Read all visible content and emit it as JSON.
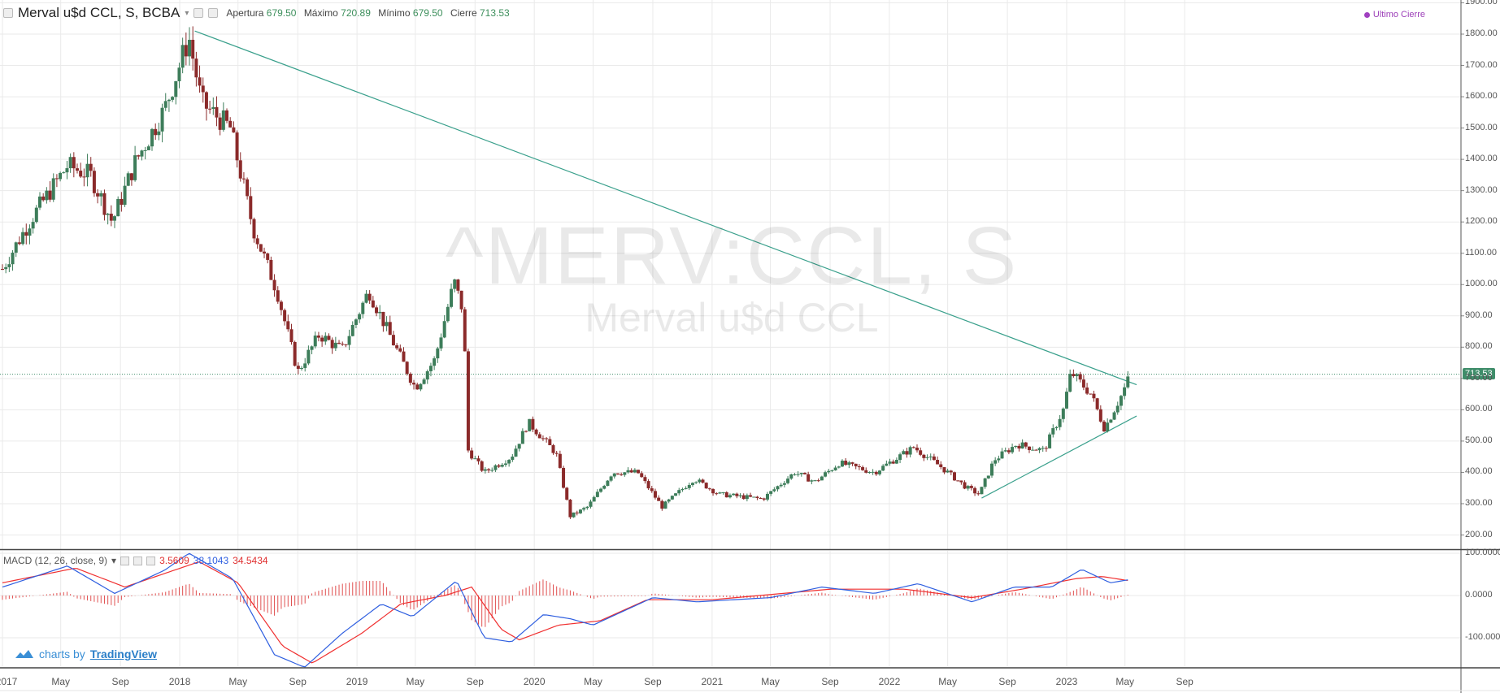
{
  "header": {
    "symbol_text": "Merval u$d CCL, S, BCBA",
    "ohlc": [
      {
        "label": "Apertura",
        "value": "679.50"
      },
      {
        "label": "Máximo",
        "value": "720.89"
      },
      {
        "label": "Mínimo",
        "value": "679.50"
      },
      {
        "label": "Cierre",
        "value": "713.53"
      }
    ],
    "legend_right": "Ultimo Cierre"
  },
  "watermark": {
    "line1": "^MERV:CCL, S",
    "line2": "Merval u$d CCL"
  },
  "last_price_tag": "713.53",
  "macd": {
    "title": "MACD (12, 26, close, 9)",
    "v_hist": "3.5609",
    "v_macd": "38.1043",
    "v_signal": "34.5434"
  },
  "branding": {
    "prefix": "charts by",
    "name": "TradingView"
  },
  "colors": {
    "up": "#3d7d5a",
    "down": "#8b2a2a",
    "trendline": "#3aa08c",
    "macd_line": "#2f5fe0",
    "signal_line": "#f03030",
    "hist": "#e05050",
    "accent": "#a03fc0"
  },
  "chart_data": [
    {
      "type": "candlestick",
      "title": "Merval u$d CCL, S, BCBA",
      "x_ticks": [
        "2017",
        "May",
        "Sep",
        "2018",
        "May",
        "Sep",
        "2019",
        "May",
        "Sep",
        "2020",
        "May",
        "Sep",
        "2021",
        "May",
        "Sep",
        "2022",
        "May",
        "Sep",
        "2023",
        "May",
        "Sep"
      ],
      "y_ticks": [
        "1900.00",
        "1800.00",
        "1700.00",
        "1600.00",
        "1500.00",
        "1400.00",
        "1300.00",
        "1200.00",
        "1100.00",
        "1000.00",
        "900.00",
        "800.00",
        "700.00",
        "600.00",
        "500.00",
        "400.00",
        "300.00",
        "200.00"
      ],
      "ylim": [
        160,
        1900
      ],
      "anchors": [
        {
          "date": "2017-01-01",
          "close": 1050
        },
        {
          "date": "2017-03-01",
          "close": 1210
        },
        {
          "date": "2017-05-15",
          "close": 1380
        },
        {
          "date": "2017-07-01",
          "close": 1350
        },
        {
          "date": "2017-08-15",
          "close": 1200
        },
        {
          "date": "2017-10-01",
          "close": 1390
        },
        {
          "date": "2017-12-01",
          "close": 1560
        },
        {
          "date": "2018-01-20",
          "close": 1790
        },
        {
          "date": "2018-02-15",
          "close": 1580
        },
        {
          "date": "2018-04-15",
          "close": 1500
        },
        {
          "date": "2018-06-01",
          "close": 1180
        },
        {
          "date": "2018-07-20",
          "close": 980
        },
        {
          "date": "2018-09-01",
          "close": 720
        },
        {
          "date": "2018-10-15",
          "close": 840
        },
        {
          "date": "2018-12-01",
          "close": 790
        },
        {
          "date": "2019-01-25",
          "close": 980
        },
        {
          "date": "2019-03-15",
          "close": 820
        },
        {
          "date": "2019-05-01",
          "close": 670
        },
        {
          "date": "2019-06-10",
          "close": 760
        },
        {
          "date": "2019-07-20",
          "close": 1010
        },
        {
          "date": "2019-08-08",
          "close": 910
        },
        {
          "date": "2019-08-18",
          "close": 470
        },
        {
          "date": "2019-09-20",
          "close": 400
        },
        {
          "date": "2019-11-15",
          "close": 450
        },
        {
          "date": "2019-12-20",
          "close": 560
        },
        {
          "date": "2020-02-15",
          "close": 460
        },
        {
          "date": "2020-03-15",
          "close": 260
        },
        {
          "date": "2020-04-20",
          "close": 290
        },
        {
          "date": "2020-06-10",
          "close": 400
        },
        {
          "date": "2020-08-01",
          "close": 400
        },
        {
          "date": "2020-09-20",
          "close": 290
        },
        {
          "date": "2020-11-25",
          "close": 380
        },
        {
          "date": "2021-01-15",
          "close": 330
        },
        {
          "date": "2021-04-15",
          "close": 315
        },
        {
          "date": "2021-06-20",
          "close": 400
        },
        {
          "date": "2021-08-01",
          "close": 370
        },
        {
          "date": "2021-09-20",
          "close": 430
        },
        {
          "date": "2021-12-01",
          "close": 400
        },
        {
          "date": "2022-02-20",
          "close": 480
        },
        {
          "date": "2022-04-15",
          "close": 420
        },
        {
          "date": "2022-06-10",
          "close": 350
        },
        {
          "date": "2022-07-05",
          "close": 330
        },
        {
          "date": "2022-08-05",
          "close": 440
        },
        {
          "date": "2022-09-20",
          "close": 490
        },
        {
          "date": "2022-11-15",
          "close": 470
        },
        {
          "date": "2022-12-25",
          "close": 600
        },
        {
          "date": "2023-01-10",
          "close": 720
        },
        {
          "date": "2023-02-20",
          "close": 650
        },
        {
          "date": "2023-03-20",
          "close": 540
        },
        {
          "date": "2023-04-25",
          "close": 650
        },
        {
          "date": "2023-05-12",
          "close": 713.53
        }
      ],
      "trendlines": [
        {
          "from": {
            "date": "2018-02-01",
            "value": 1810
          },
          "to": {
            "date": "2023-05-25",
            "value": 680
          }
        },
        {
          "from": {
            "date": "2022-07-10",
            "value": 318
          },
          "to": {
            "date": "2023-05-25",
            "value": 580
          }
        }
      ],
      "last_close": 713.53
    },
    {
      "type": "line",
      "title": "MACD (12, 26, close, 9)",
      "y_ticks": [
        "100.0000",
        "0.0000",
        "-100.0000"
      ],
      "ylim": [
        -180,
        110
      ],
      "macd_anchors": [
        {
          "date": "2017-01-01",
          "value": 20
        },
        {
          "date": "2017-05-15",
          "value": 70
        },
        {
          "date": "2017-08-20",
          "value": 5
        },
        {
          "date": "2017-12-01",
          "value": 60
        },
        {
          "date": "2018-01-20",
          "value": 100
        },
        {
          "date": "2018-04-20",
          "value": 40
        },
        {
          "date": "2018-07-15",
          "value": -140
        },
        {
          "date": "2018-09-15",
          "value": -170
        },
        {
          "date": "2018-12-01",
          "value": -90
        },
        {
          "date": "2019-02-20",
          "value": -20
        },
        {
          "date": "2019-04-25",
          "value": -50
        },
        {
          "date": "2019-07-25",
          "value": 35
        },
        {
          "date": "2019-09-20",
          "value": -100
        },
        {
          "date": "2019-11-15",
          "value": -110
        },
        {
          "date": "2020-01-20",
          "value": -45
        },
        {
          "date": "2020-03-15",
          "value": -55
        },
        {
          "date": "2020-05-01",
          "value": -70
        },
        {
          "date": "2020-09-01",
          "value": -5
        },
        {
          "date": "2020-12-01",
          "value": -15
        },
        {
          "date": "2021-05-01",
          "value": -5
        },
        {
          "date": "2021-08-15",
          "value": 20
        },
        {
          "date": "2021-12-01",
          "value": 5
        },
        {
          "date": "2022-03-01",
          "value": 28
        },
        {
          "date": "2022-06-20",
          "value": -15
        },
        {
          "date": "2022-09-15",
          "value": 20
        },
        {
          "date": "2022-12-01",
          "value": 20
        },
        {
          "date": "2023-02-01",
          "value": 62
        },
        {
          "date": "2023-04-01",
          "value": 30
        },
        {
          "date": "2023-05-12",
          "value": 38.1043
        }
      ],
      "signal_anchors": [
        {
          "date": "2017-01-01",
          "value": 30
        },
        {
          "date": "2017-06-01",
          "value": 65
        },
        {
          "date": "2017-09-10",
          "value": 20
        },
        {
          "date": "2018-02-10",
          "value": 80
        },
        {
          "date": "2018-05-01",
          "value": 30
        },
        {
          "date": "2018-08-01",
          "value": -120
        },
        {
          "date": "2018-10-01",
          "value": -160
        },
        {
          "date": "2019-01-10",
          "value": -90
        },
        {
          "date": "2019-04-01",
          "value": -20
        },
        {
          "date": "2019-07-01",
          "value": 0
        },
        {
          "date": "2019-08-25",
          "value": 20
        },
        {
          "date": "2019-10-25",
          "value": -80
        },
        {
          "date": "2019-12-01",
          "value": -105
        },
        {
          "date": "2020-02-20",
          "value": -70
        },
        {
          "date": "2020-05-15",
          "value": -60
        },
        {
          "date": "2020-08-20",
          "value": -10
        },
        {
          "date": "2021-01-01",
          "value": -10
        },
        {
          "date": "2021-09-01",
          "value": 15
        },
        {
          "date": "2022-02-01",
          "value": 15
        },
        {
          "date": "2022-06-20",
          "value": -5
        },
        {
          "date": "2022-10-01",
          "value": 15
        },
        {
          "date": "2023-01-20",
          "value": 40
        },
        {
          "date": "2023-03-15",
          "value": 45
        },
        {
          "date": "2023-05-12",
          "value": 34.5434
        }
      ]
    }
  ]
}
